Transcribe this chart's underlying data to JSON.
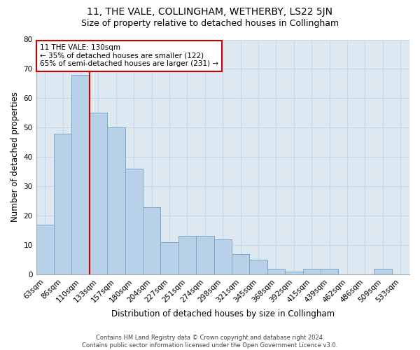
{
  "title": "11, THE VALE, COLLINGHAM, WETHERBY, LS22 5JN",
  "subtitle": "Size of property relative to detached houses in Collingham",
  "xlabel": "Distribution of detached houses by size in Collingham",
  "ylabel": "Number of detached properties",
  "categories": [
    "63sqm",
    "86sqm",
    "110sqm",
    "133sqm",
    "157sqm",
    "180sqm",
    "204sqm",
    "227sqm",
    "251sqm",
    "274sqm",
    "298sqm",
    "321sqm",
    "345sqm",
    "368sqm",
    "392sqm",
    "415sqm",
    "439sqm",
    "462sqm",
    "486sqm",
    "509sqm",
    "533sqm"
  ],
  "values": [
    17,
    48,
    68,
    55,
    50,
    36,
    23,
    11,
    13,
    13,
    12,
    7,
    5,
    2,
    1,
    2,
    2,
    0,
    0,
    2,
    0
  ],
  "bar_color": "#b8d0e8",
  "bar_edge_color": "#7aaac8",
  "vline_x_index": 3,
  "vline_color": "#cc0000",
  "annotation_text": "11 THE VALE: 130sqm\n← 35% of detached houses are smaller (122)\n65% of semi-detached houses are larger (231) →",
  "annotation_box_color": "white",
  "annotation_box_edge_color": "#cc0000",
  "ylim": [
    0,
    80
  ],
  "yticks": [
    0,
    10,
    20,
    30,
    40,
    50,
    60,
    70,
    80
  ],
  "grid_color": "#c8d8e8",
  "background_color": "#dde8f0",
  "footer_line1": "Contains HM Land Registry data © Crown copyright and database right 2024.",
  "footer_line2": "Contains public sector information licensed under the Open Government Licence v3.0.",
  "title_fontsize": 10,
  "subtitle_fontsize": 9,
  "xlabel_fontsize": 8.5,
  "ylabel_fontsize": 8.5,
  "tick_fontsize": 7.5,
  "annotation_fontsize": 7.5,
  "footer_fontsize": 6
}
